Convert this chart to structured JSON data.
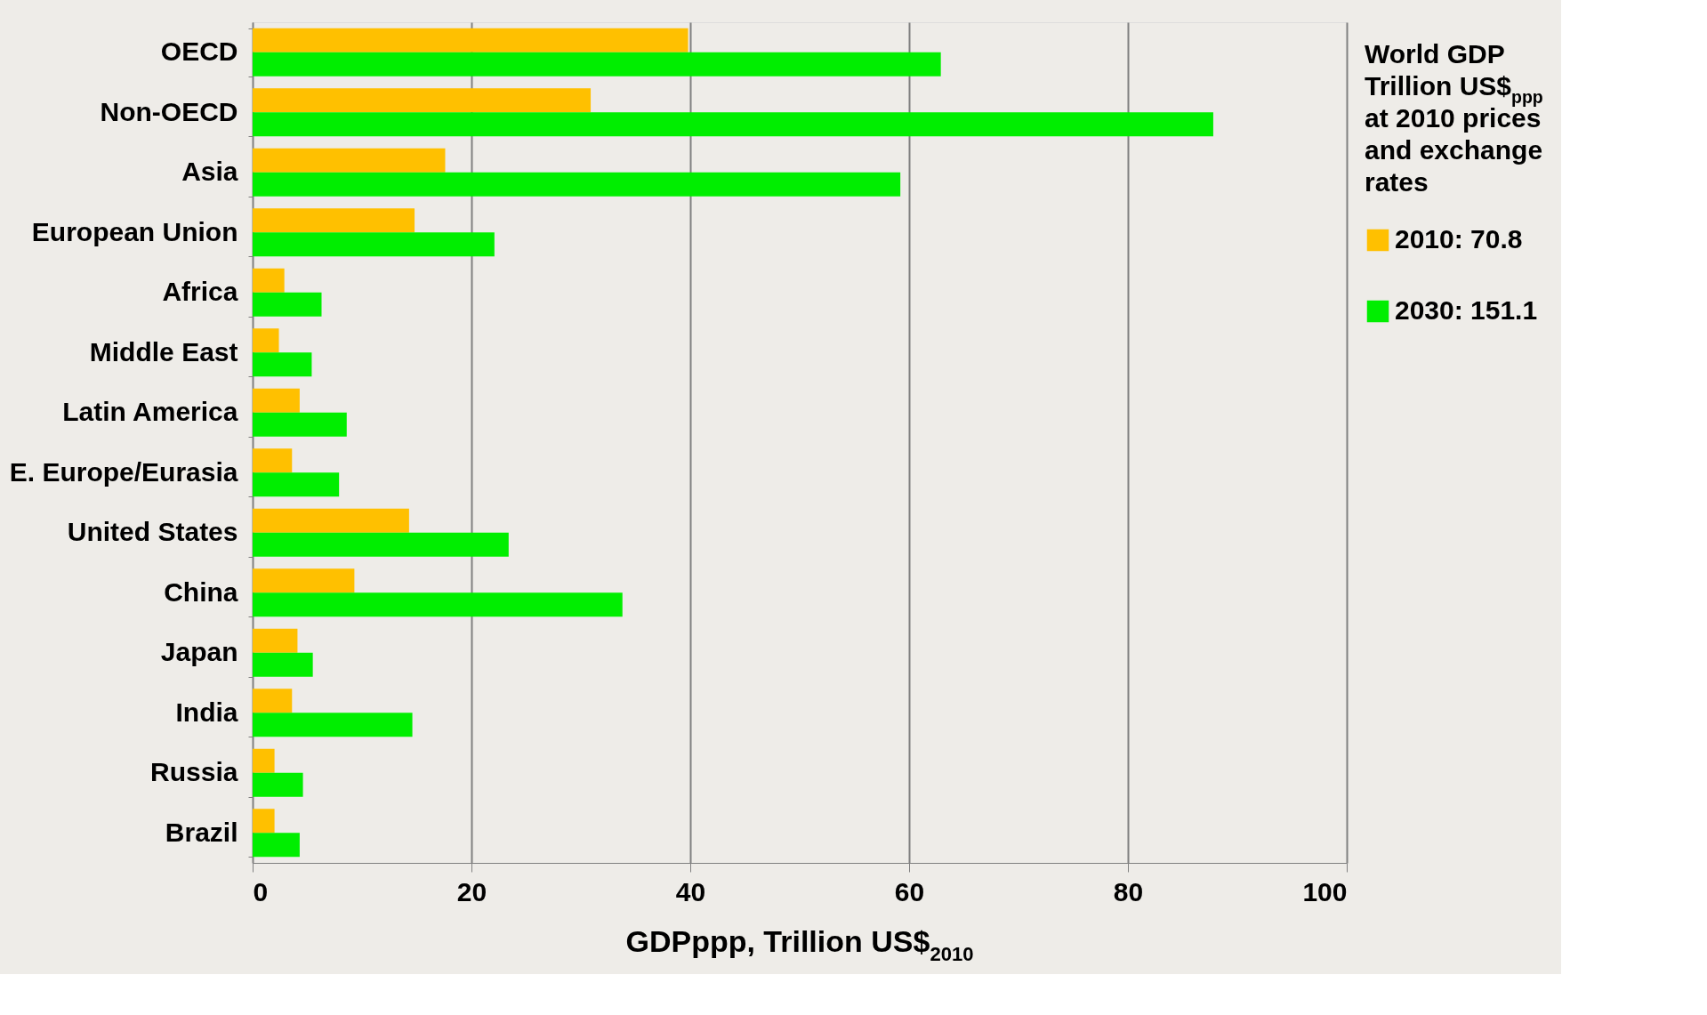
{
  "chart_data": {
    "type": "bar",
    "orientation": "horizontal",
    "categories": [
      "OECD",
      "Non-OECD",
      "Asia",
      "European Union",
      "Africa",
      "Middle East",
      "Latin America",
      "E. Europe/Eurasia",
      "United States",
      "China",
      "Japan",
      "India",
      "Russia",
      "Brazil"
    ],
    "series": [
      {
        "name": "2010:   70.8",
        "color": "#ffc000",
        "values": [
          39.8,
          30.9,
          17.6,
          14.8,
          2.9,
          2.4,
          4.3,
          3.6,
          14.3,
          9.3,
          4.1,
          3.6,
          2.0,
          2.0
        ]
      },
      {
        "name": "2030:   151.1",
        "color": "#00ee00",
        "values": [
          62.9,
          87.8,
          59.2,
          22.1,
          6.3,
          5.4,
          8.6,
          7.9,
          23.4,
          33.8,
          5.5,
          14.6,
          4.6,
          4.3
        ]
      }
    ],
    "xlabel": "GDPppp, Trillion US$$_{2010}$",
    "legend_title": "World GDP Trillion US$$_{ppp}$ at 2010 prices and exchange rates",
    "xlim": [
      0,
      100
    ],
    "xticks": [
      0,
      20,
      40,
      60,
      80,
      100
    ],
    "grid": "x",
    "legend": "right"
  }
}
